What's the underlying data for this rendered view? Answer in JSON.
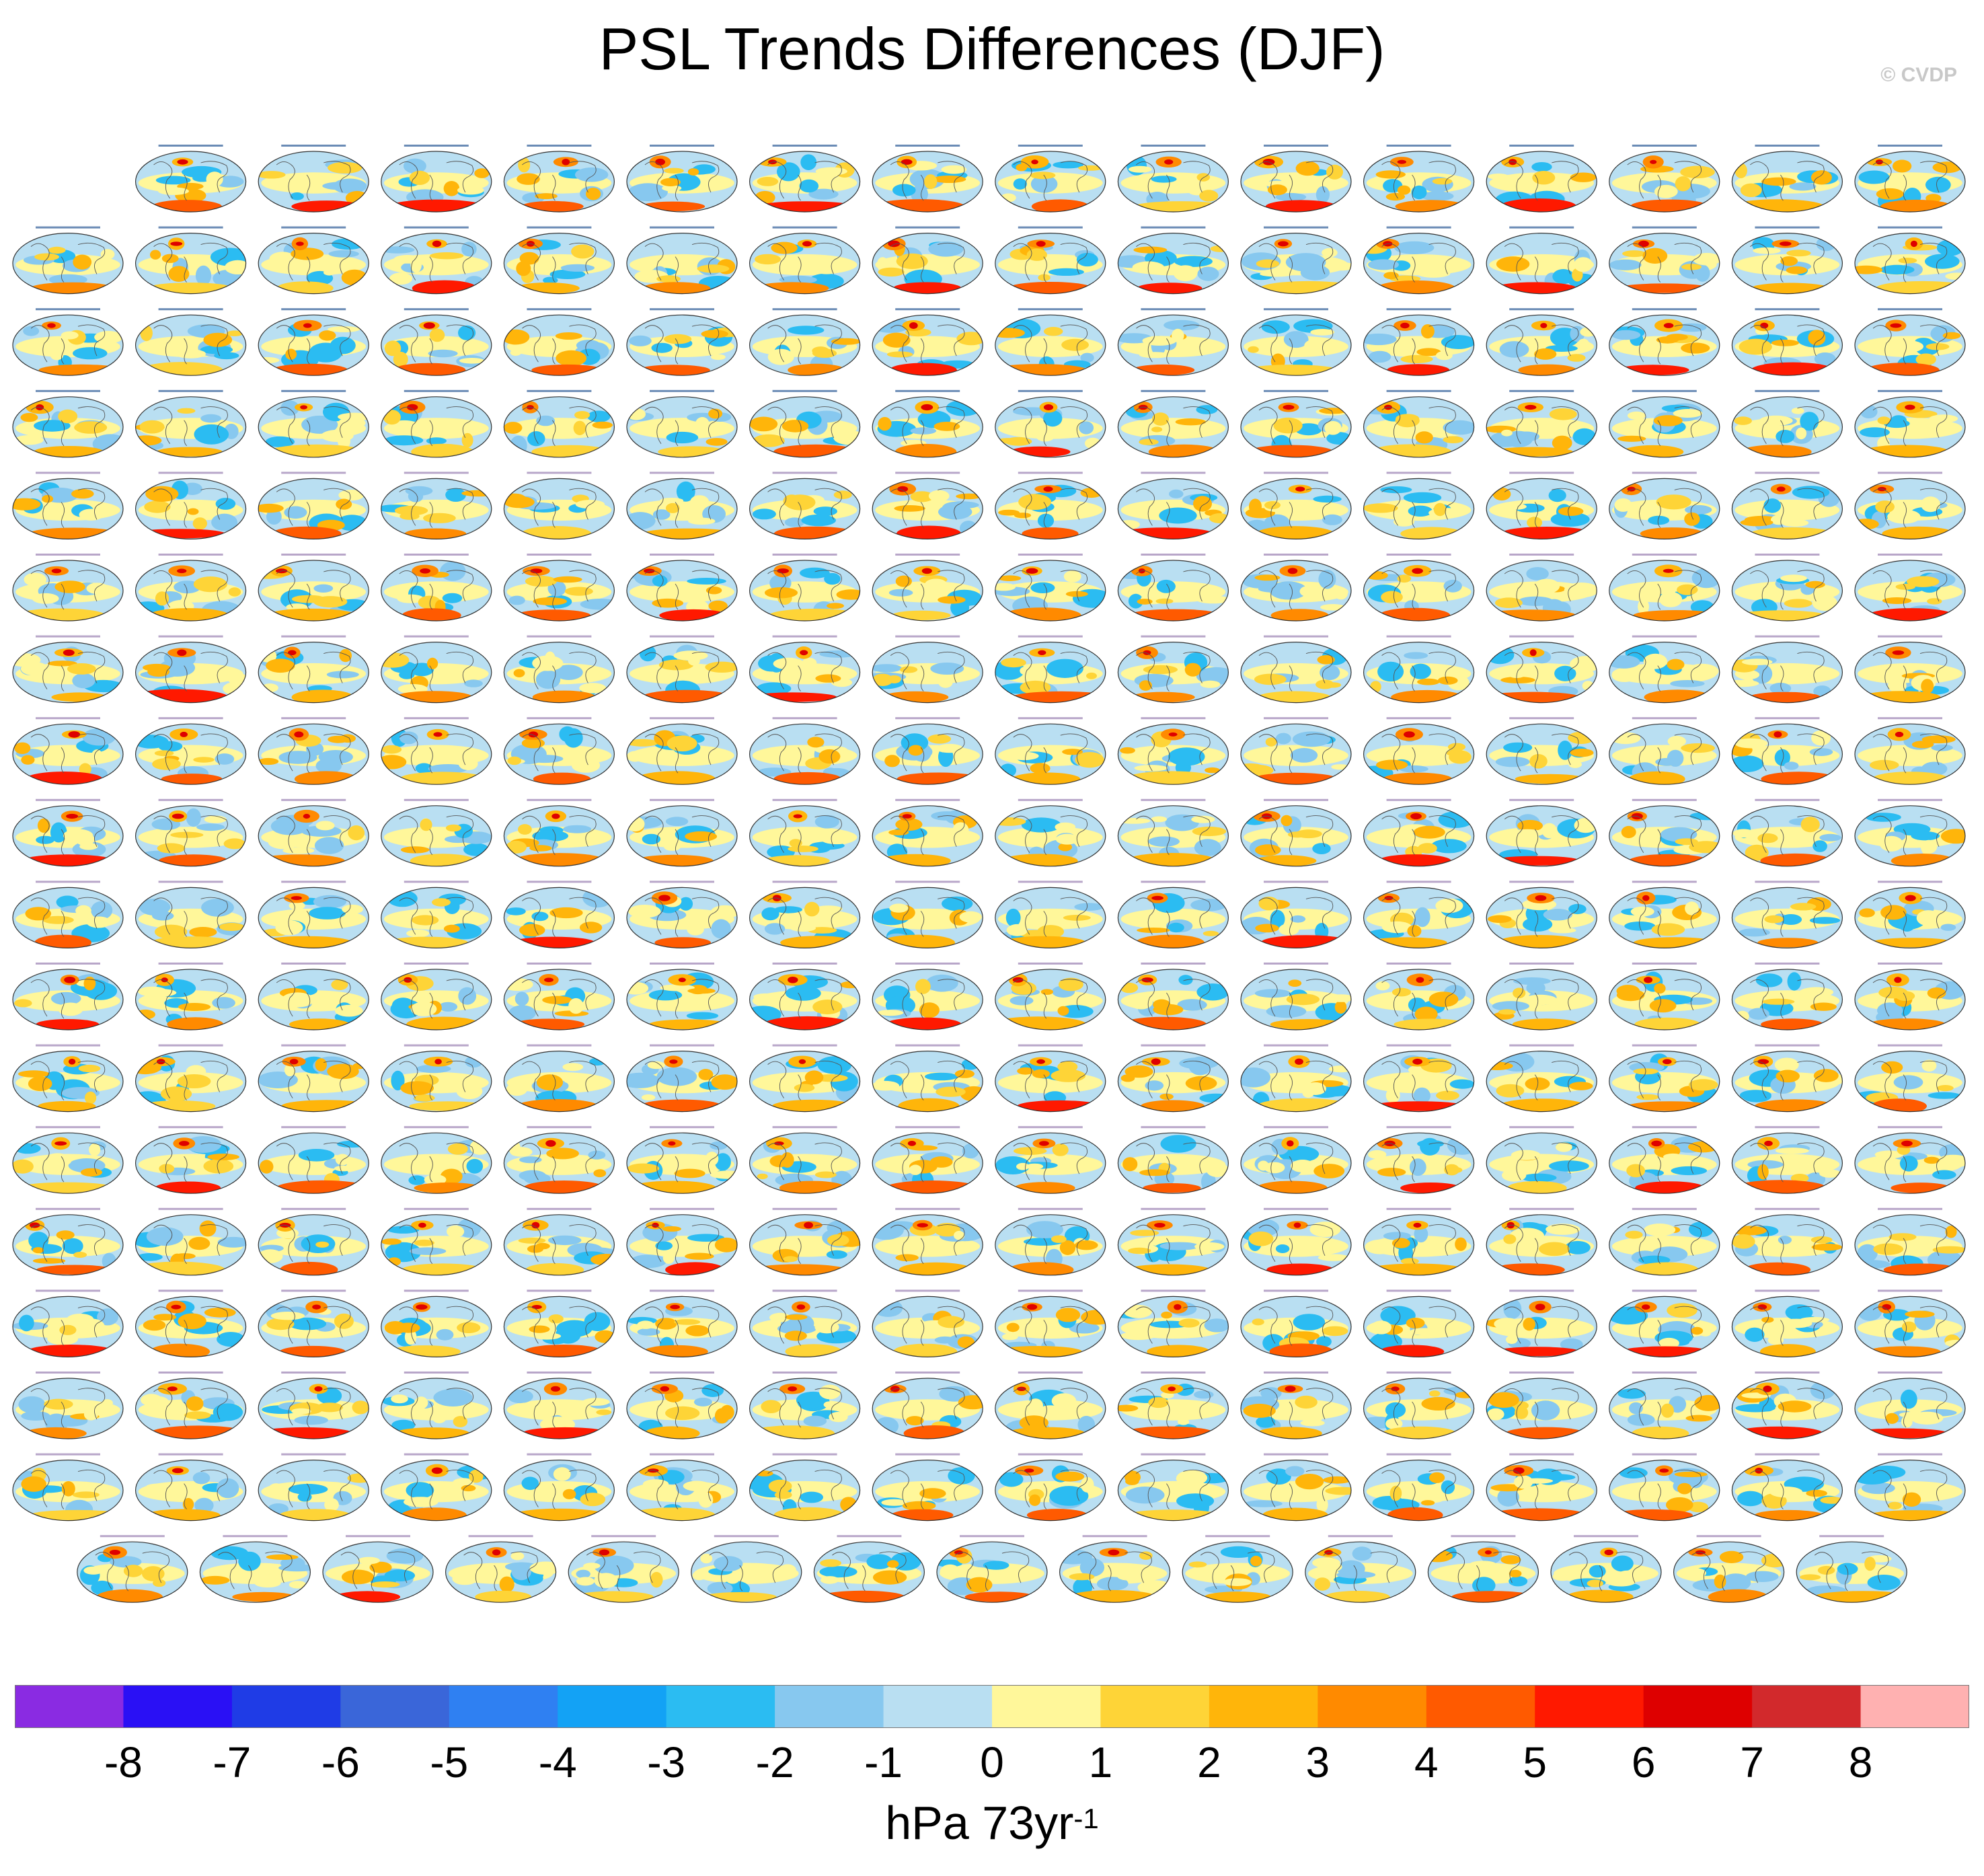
{
  "title": "PSL Trends Differences (DJF)",
  "credit": "© CVDP",
  "units": {
    "main": "hPa 73yr",
    "exponent": "-1"
  },
  "chart_data": {
    "type": "heatmap",
    "description_variable": "Sea level pressure trend differences, December-February",
    "layout": {
      "rows": 18,
      "panels_per_row": [
        15,
        16,
        16,
        16,
        16,
        16,
        16,
        16,
        16,
        16,
        16,
        16,
        16,
        16,
        16,
        16,
        16,
        15
      ]
    },
    "colorbar": {
      "levels": [
        -8,
        -7,
        -6,
        -5,
        -4,
        -3,
        -2,
        -1,
        0,
        1,
        2,
        3,
        4,
        5,
        6,
        7,
        8
      ],
      "colors": [
        "#8a2be2",
        "#2a10f5",
        "#1f3ce6",
        "#3a66d9",
        "#2f80f2",
        "#13a2f5",
        "#2bbcf2",
        "#87c8ef",
        "#b9dff2",
        "#fff79a",
        "#fed437",
        "#ffb50a",
        "#ff8a00",
        "#ff5a00",
        "#ff1900",
        "#de0000",
        "#d2292c",
        "#ffb1b1"
      ]
    },
    "ticks": [
      "-8",
      "-7",
      "-6",
      "-5",
      "-4",
      "-3",
      "-2",
      "-1",
      "0",
      "1",
      "2",
      "3",
      "4",
      "5",
      "6",
      "7",
      "8"
    ]
  }
}
